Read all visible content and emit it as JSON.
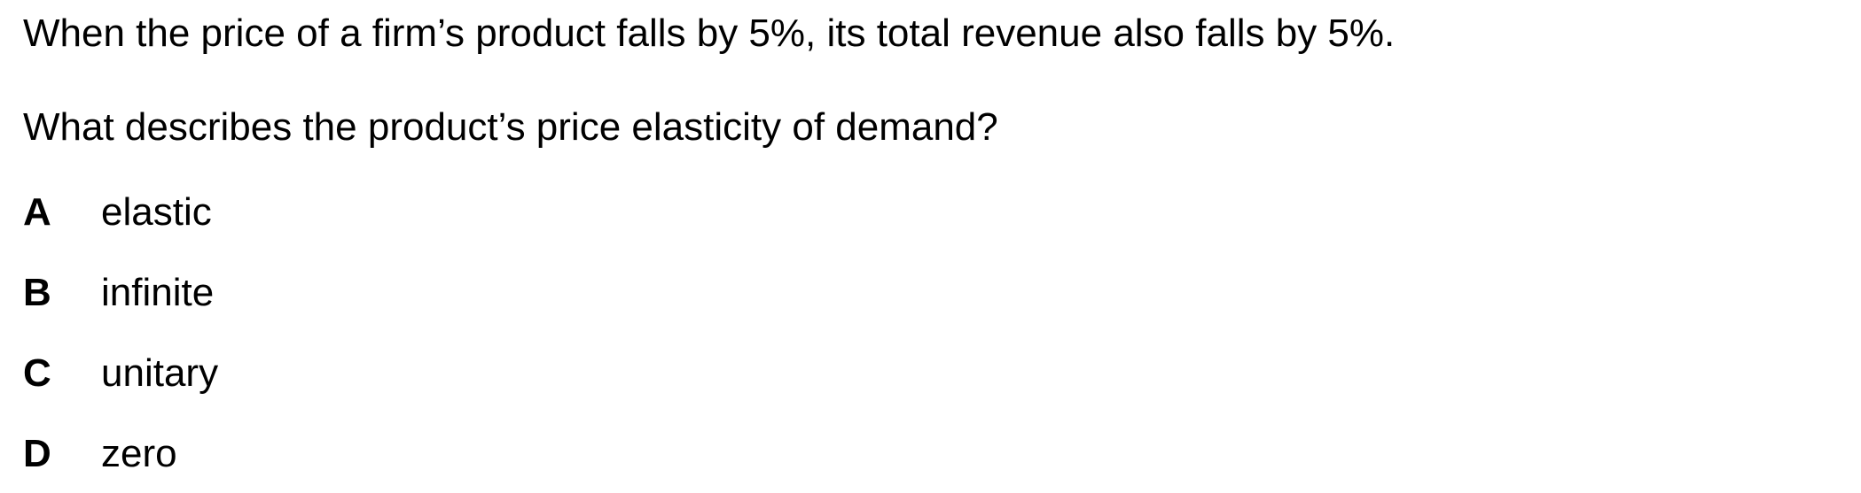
{
  "question": {
    "stem_line_1": "When the price of a firm’s product falls by 5%, its total revenue also falls by 5%.",
    "stem_line_2": "What describes the product’s price elasticity of demand?",
    "options": [
      {
        "letter": "A",
        "text": "elastic"
      },
      {
        "letter": "B",
        "text": "infinite"
      },
      {
        "letter": "C",
        "text": "unitary"
      },
      {
        "letter": "D",
        "text": "zero"
      }
    ]
  }
}
